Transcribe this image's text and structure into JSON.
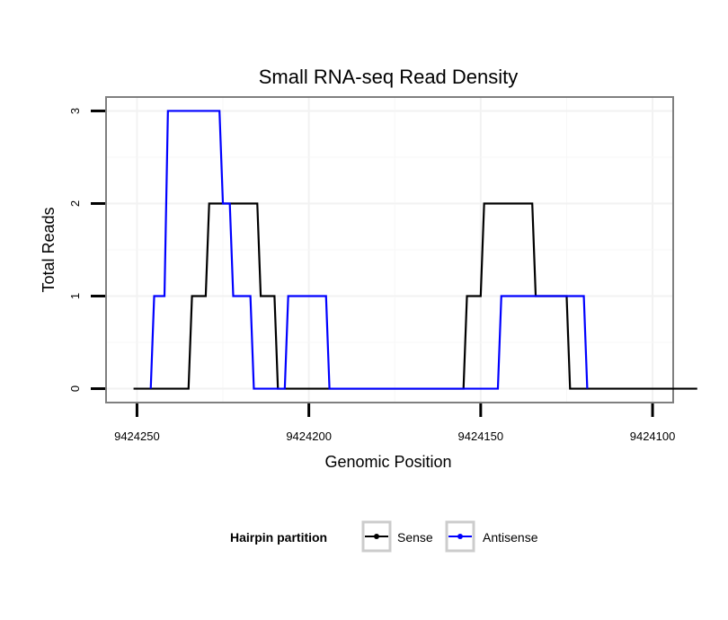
{
  "chart_data": {
    "type": "line",
    "title": "Small RNA-seq Read Density",
    "xlabel": "Genomic Position",
    "ylabel": "Total Reads",
    "x_reversed": true,
    "xlim": [
      9424259,
      9424094
    ],
    "ylim": [
      -0.15,
      3.15
    ],
    "x_ticks": [
      9424250,
      9424200,
      9424150,
      9424100
    ],
    "x_tick_labels": [
      "9424250",
      "9424200",
      "9424150",
      "9424100"
    ],
    "y_ticks": [
      0,
      1,
      2,
      3
    ],
    "y_tick_labels": [
      "0",
      "1",
      "2",
      "3"
    ],
    "grid": true,
    "legend": {
      "title": "Hairpin partition",
      "position": "bottom",
      "entries": [
        "Sense",
        "Antisense"
      ]
    },
    "series": [
      {
        "name": "Sense",
        "color": "#000000",
        "x": [
          9424251,
          9424235,
          9424234,
          9424230,
          9424229,
          9424215,
          9424214,
          9424210,
          9424209,
          9424155,
          9424154,
          9424150,
          9424149,
          9424135,
          9424134,
          9424130,
          9424129,
          9424125,
          9424124,
          9424087
        ],
        "y": [
          0,
          0,
          1,
          1,
          2,
          2,
          1,
          1,
          0,
          0,
          1,
          1,
          2,
          2,
          1,
          1,
          1,
          1,
          0,
          0
        ]
      },
      {
        "name": "Antisense",
        "color": "#0000ff",
        "x": [
          9424246,
          9424245,
          9424242,
          9424241,
          9424226,
          9424225,
          9424223,
          9424222,
          9424217,
          9424216,
          9424207,
          9424206,
          9424195,
          9424194,
          9424168,
          9424167,
          9424145,
          9424144,
          9424137,
          9424136,
          9424120,
          9424119
        ],
        "y": [
          0,
          1,
          1,
          3,
          3,
          2,
          2,
          1,
          1,
          0,
          0,
          1,
          1,
          0,
          0,
          0,
          0,
          1,
          1,
          1,
          1,
          0
        ]
      }
    ]
  }
}
